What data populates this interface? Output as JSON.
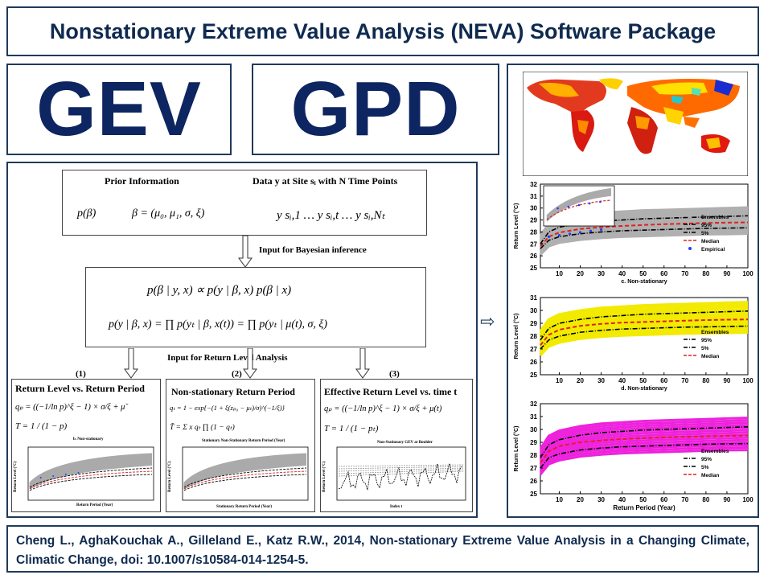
{
  "header": {
    "title": "Nonstationary Extreme Value Analysis (NEVA) Software Package"
  },
  "models": {
    "gev": "GEV",
    "gpd": "GPD"
  },
  "flow": {
    "prior_title": "Prior Information",
    "data_title": "Data y at Site sᵢ with N Time Points",
    "prior_eq1": "p(β)",
    "prior_eq2": "β = (μ₀, μ₁, σ, ξ)",
    "data_eq": "y sᵢ,1 … y sᵢ,t … y sᵢ,Nₜ",
    "bayes_label": "Input  for  Bayesian inference",
    "posterior_eq": "p(β | y, x) ∝ p(y | β, x) p(β | x)",
    "likelihood_eq": "p(y | β, x) = ∏ p(yₜ | β, x(t)) = ∏ p(yₜ | μ(t), σ, ξ)",
    "return_label": "Input  for  Return     Level Analysis",
    "panels": [
      {
        "num": "(1)",
        "title": "Return  Level  vs. Return  Period",
        "eq1": "qₚ = ((−1/ln p)^ξ − 1) × σ/ξ + μ̃",
        "eq2": "T = 1 / (1 − p)",
        "xlabel": "Return Period (Year)",
        "ylabel": "Return Level (°C)",
        "caption": "b. Non-stationary"
      },
      {
        "num": "(2)",
        "title": "Non-stationary  Return  Period",
        "eq1": "qₜ = 1 − exp{−(1 + ξ(zₚ₀ − μₜ)/σ)^(−1/ξ)}",
        "eq2": "T̃ = Σ x qₜ ∏ (1 − qₜ)",
        "xlabel": "Stationary Return Period (Year)",
        "ylabel": "Return Level (°C)",
        "caption": "Stationary Non-Stationary Return Period (Year)"
      },
      {
        "num": "(3)",
        "title": "Effective  Return  Level vs. time  t",
        "eq1": "qₚ = ((−1/ln p)^ξ − 1) × σ/ξ + μ(t)",
        "eq2": "T = 1 / (1 − pₜ)",
        "xlabel": "Index t",
        "ylabel": "Return Level (°C)",
        "caption": "Non-Stationary GEV at Boulder"
      }
    ]
  },
  "charts": [
    {
      "caption": "c. Non-stationary",
      "ylabel": "Return Level (°C)",
      "legend": [
        "Ensembles",
        "95%",
        "5%",
        "Median",
        "Empirical"
      ],
      "ensemble_color": "#b0b0b0"
    },
    {
      "caption": "d. Non-stationary",
      "ylabel": "Return Level (°C)",
      "legend": [
        "Ensembles",
        "95%",
        "5%",
        "Median"
      ],
      "ensemble_color": "#f2ea00"
    },
    {
      "caption": "",
      "xlabel": "Return Period (Year)",
      "ylabel": "Return Level (°C)",
      "legend": [
        "Ensembles",
        "95%",
        "5%",
        "Median"
      ],
      "ensemble_color": "#ee22dd"
    }
  ],
  "chart_data": [
    {
      "type": "line",
      "x": [
        1,
        5,
        10,
        20,
        30,
        40,
        50,
        60,
        70,
        80,
        90,
        100
      ],
      "ylim": [
        25,
        32
      ],
      "xlim": [
        1,
        100
      ],
      "yticks": [
        25,
        26,
        27,
        28,
        29,
        30,
        31,
        32
      ],
      "xticks": [
        10,
        20,
        30,
        40,
        50,
        60,
        70,
        80,
        90,
        100
      ],
      "series": [
        {
          "name": "95%",
          "values": [
            27.0,
            28.0,
            28.4,
            28.7,
            28.9,
            29.0,
            29.1,
            29.15,
            29.2,
            29.25,
            29.3,
            29.35
          ]
        },
        {
          "name": "5%",
          "values": [
            26.6,
            27.3,
            27.6,
            27.85,
            28.0,
            28.1,
            28.15,
            28.2,
            28.25,
            28.3,
            28.32,
            28.35
          ]
        },
        {
          "name": "Median",
          "values": [
            26.8,
            27.6,
            27.95,
            28.25,
            28.4,
            28.5,
            28.58,
            28.65,
            28.7,
            28.75,
            28.78,
            28.8
          ]
        }
      ]
    },
    {
      "type": "line",
      "x": [
        1,
        5,
        10,
        20,
        30,
        40,
        50,
        60,
        70,
        80,
        90,
        100
      ],
      "ylim": [
        25,
        31
      ],
      "xlim": [
        1,
        100
      ],
      "yticks": [
        25,
        26,
        27,
        28,
        29,
        30,
        31
      ],
      "xticks": [
        10,
        20,
        30,
        40,
        50,
        60,
        70,
        80,
        90,
        100
      ],
      "series": [
        {
          "name": "95%",
          "values": [
            27.7,
            28.6,
            29.0,
            29.3,
            29.5,
            29.6,
            29.7,
            29.75,
            29.8,
            29.85,
            29.9,
            29.95
          ]
        },
        {
          "name": "5%",
          "values": [
            27.0,
            27.7,
            28.0,
            28.3,
            28.45,
            28.55,
            28.6,
            28.65,
            28.7,
            28.72,
            28.75,
            28.78
          ]
        },
        {
          "name": "Median",
          "values": [
            27.3,
            28.1,
            28.5,
            28.8,
            28.95,
            29.05,
            29.1,
            29.15,
            29.2,
            29.25,
            29.28,
            29.3
          ]
        }
      ]
    },
    {
      "type": "line",
      "x": [
        1,
        5,
        10,
        20,
        30,
        40,
        50,
        60,
        70,
        80,
        90,
        100
      ],
      "ylim": [
        25,
        32
      ],
      "xlim": [
        1,
        100
      ],
      "yticks": [
        25,
        26,
        27,
        28,
        29,
        30,
        31,
        32
      ],
      "xticks": [
        10,
        20,
        30,
        40,
        50,
        60,
        70,
        80,
        90,
        100
      ],
      "series": [
        {
          "name": "95%",
          "values": [
            27.8,
            28.8,
            29.2,
            29.55,
            29.75,
            29.85,
            29.95,
            30.0,
            30.05,
            30.1,
            30.15,
            30.2
          ]
        },
        {
          "name": "5%",
          "values": [
            27.0,
            27.8,
            28.1,
            28.4,
            28.55,
            28.65,
            28.7,
            28.75,
            28.8,
            28.85,
            28.88,
            28.9
          ]
        },
        {
          "name": "Median",
          "values": [
            27.4,
            28.3,
            28.7,
            29.0,
            29.15,
            29.25,
            29.32,
            29.38,
            29.42,
            29.46,
            29.5,
            29.52
          ]
        }
      ]
    }
  ],
  "citation": "Cheng L., AghaKouchak A., Gilleland E., Katz R.W., 2014, Non-stationary Extreme Value Analysis in a Changing Climate, Climatic Change, doi: 10.1007/s10584-014-1254-5."
}
